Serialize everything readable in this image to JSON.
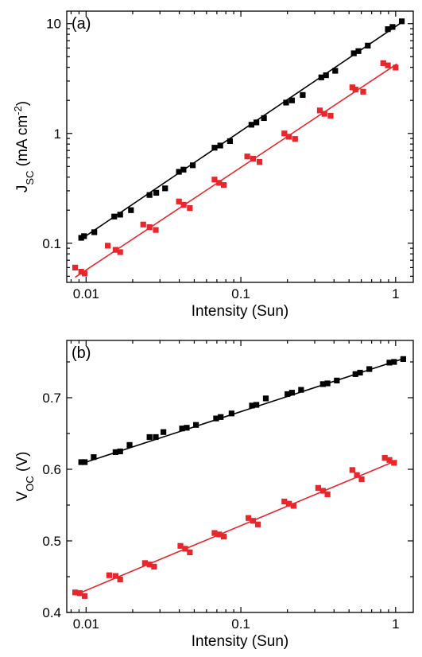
{
  "chart_data": [
    {
      "type": "scatter",
      "panel_label": "(a)",
      "xlabel": "Intensity (Sun)",
      "ylabel": "J",
      "ylabel_sub": "SC",
      "ylabel_unit_pre": " (mA cm",
      "ylabel_unit_sup": "-2",
      "ylabel_unit_post": ")",
      "xscale": "log",
      "yscale": "log",
      "xlim": [
        0.0075,
        1.3
      ],
      "ylim": [
        0.044,
        13
      ],
      "x_ticks": [
        0.01,
        0.1,
        1
      ],
      "x_tick_labels": [
        "0.01",
        "0.1",
        "1"
      ],
      "y_ticks": [
        0.1,
        1,
        10
      ],
      "y_tick_labels": [
        "0.1",
        "1",
        "10"
      ],
      "grid": false,
      "legend": "none",
      "series": [
        {
          "color": "#000000",
          "x": [
            0.0093,
            0.0097,
            0.0113,
            0.0152,
            0.0166,
            0.0195,
            0.0257,
            0.0284,
            0.0324,
            0.0398,
            0.0426,
            0.0489,
            0.0676,
            0.0736,
            0.0851,
            0.117,
            0.126,
            0.141,
            0.196,
            0.214,
            0.251,
            0.331,
            0.355,
            0.407,
            0.537,
            0.575,
            0.661,
            0.891,
            0.955,
            1.096
          ],
          "y": [
            0.112,
            0.116,
            0.126,
            0.175,
            0.182,
            0.2,
            0.275,
            0.288,
            0.316,
            0.447,
            0.468,
            0.513,
            0.741,
            0.776,
            0.851,
            1.2,
            1.26,
            1.38,
            1.91,
            2.0,
            2.24,
            3.24,
            3.39,
            3.72,
            5.37,
            5.62,
            6.31,
            8.91,
            9.33,
            10.5
          ],
          "fit": {
            "x": [
              0.0092,
              1.12
            ],
            "y": [
              0.108,
              10.5
            ]
          }
        },
        {
          "color": "#e8262b",
          "x": [
            0.0085,
            0.0093,
            0.0098,
            0.0138,
            0.0155,
            0.0166,
            0.0234,
            0.0257,
            0.0282,
            0.0398,
            0.0427,
            0.0468,
            0.0676,
            0.0724,
            0.0776,
            0.11,
            0.12,
            0.132,
            0.191,
            0.204,
            0.224,
            0.324,
            0.347,
            0.38,
            0.525,
            0.55,
            0.617,
            0.832,
            0.891,
            1.0
          ],
          "y": [
            0.06,
            0.055,
            0.053,
            0.095,
            0.087,
            0.083,
            0.148,
            0.14,
            0.132,
            0.24,
            0.224,
            0.209,
            0.38,
            0.355,
            0.339,
            0.617,
            0.589,
            0.55,
            1.0,
            0.933,
            0.891,
            1.62,
            1.51,
            1.45,
            2.63,
            2.51,
            2.4,
            4.37,
            4.17,
            3.98
          ],
          "fit": {
            "x": [
              0.0085,
              1.02
            ],
            "y": [
              0.049,
              4.3
            ]
          }
        }
      ]
    },
    {
      "type": "scatter",
      "panel_label": "(b)",
      "xlabel": "Intensity (Sun)",
      "ylabel": "V",
      "ylabel_sub": "OC",
      "ylabel_unit_pre": " (V)",
      "ylabel_unit_sup": "",
      "ylabel_unit_post": "",
      "xscale": "log",
      "yscale": "linear",
      "xlim": [
        0.0075,
        1.3
      ],
      "ylim": [
        0.4,
        0.78
      ],
      "x_ticks": [
        0.01,
        0.1,
        1
      ],
      "x_tick_labels": [
        "0.01",
        "0.1",
        "1"
      ],
      "y_ticks": [
        0.4,
        0.5,
        0.6,
        0.7
      ],
      "y_tick_labels": [
        "0.4",
        "0.5",
        "0.6",
        "0.7"
      ],
      "grid": false,
      "legend": "none",
      "series": [
        {
          "color": "#000000",
          "x": [
            0.0093,
            0.0098,
            0.0112,
            0.0155,
            0.0166,
            0.0191,
            0.0257,
            0.0282,
            0.0316,
            0.0417,
            0.0447,
            0.0513,
            0.0692,
            0.0741,
            0.0871,
            0.118,
            0.126,
            0.145,
            0.2,
            0.214,
            0.245,
            0.339,
            0.363,
            0.417,
            0.55,
            0.589,
            0.676,
            0.912,
            0.977,
            1.12
          ],
          "y": [
            0.61,
            0.61,
            0.617,
            0.624,
            0.625,
            0.634,
            0.645,
            0.645,
            0.652,
            0.657,
            0.658,
            0.662,
            0.671,
            0.673,
            0.678,
            0.689,
            0.69,
            0.699,
            0.705,
            0.707,
            0.711,
            0.719,
            0.72,
            0.724,
            0.733,
            0.735,
            0.74,
            0.749,
            0.75,
            0.754
          ],
          "fit": {
            "x": [
              0.0092,
              1.12
            ],
            "y": [
              0.6075,
              0.7545
            ]
          }
        },
        {
          "color": "#e8262b",
          "x": [
            0.0085,
            0.0091,
            0.0098,
            0.0141,
            0.0155,
            0.0166,
            0.024,
            0.0257,
            0.0275,
            0.0407,
            0.0437,
            0.0468,
            0.0676,
            0.0724,
            0.0776,
            0.112,
            0.12,
            0.129,
            0.191,
            0.204,
            0.219,
            0.316,
            0.339,
            0.363,
            0.525,
            0.562,
            0.603,
            0.851,
            0.912,
            0.977
          ],
          "y": [
            0.428,
            0.427,
            0.423,
            0.452,
            0.451,
            0.446,
            0.469,
            0.467,
            0.464,
            0.493,
            0.489,
            0.484,
            0.511,
            0.509,
            0.506,
            0.532,
            0.528,
            0.523,
            0.555,
            0.552,
            0.549,
            0.574,
            0.57,
            0.565,
            0.599,
            0.592,
            0.586,
            0.616,
            0.613,
            0.609
          ],
          "fit": {
            "x": [
              0.0085,
              1.02
            ],
            "y": [
              0.4245,
              0.6125
            ]
          }
        }
      ]
    }
  ]
}
